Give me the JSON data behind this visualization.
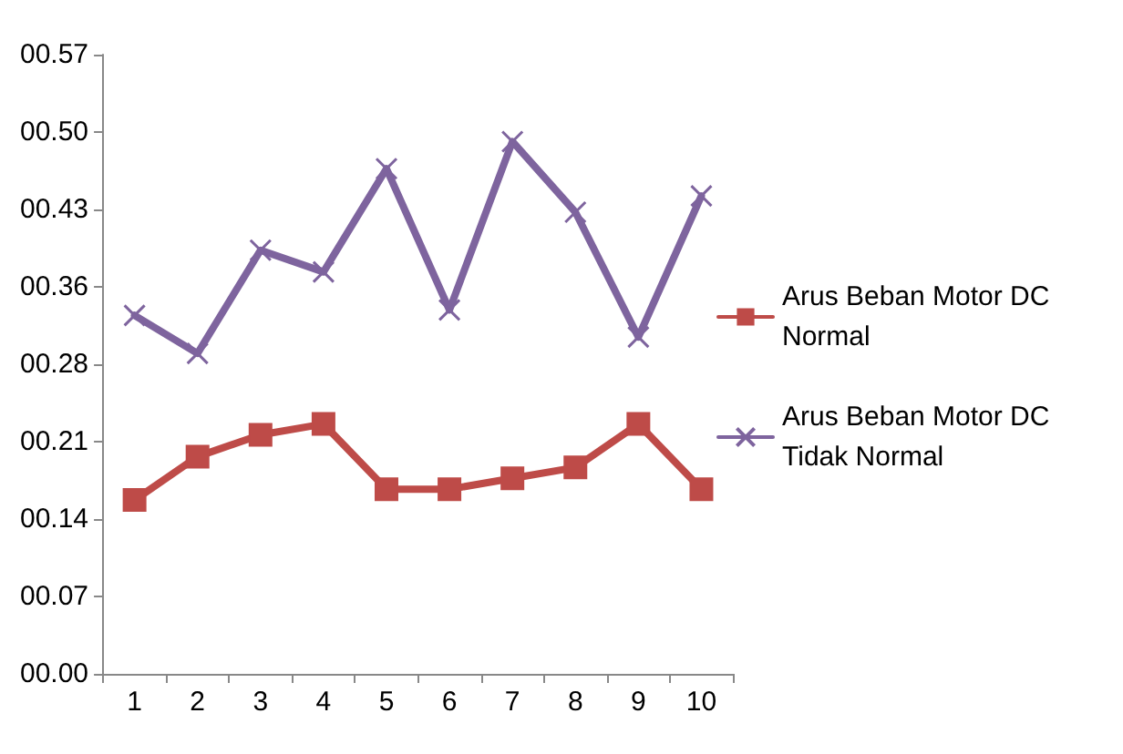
{
  "chart_data": {
    "type": "line",
    "categories": [
      "1",
      "2",
      "3",
      "4",
      "5",
      "6",
      "7",
      "8",
      "9",
      "10"
    ],
    "series": [
      {
        "name": "Arus Beban Motor DC Normal",
        "color": "#be4b48",
        "marker": "square",
        "values": [
          0.16,
          0.2,
          0.22,
          0.23,
          0.17,
          0.17,
          0.18,
          0.19,
          0.23,
          0.17
        ]
      },
      {
        "name": "Arus Beban Motor DC Tidak Normal",
        "color": "#7e649e",
        "marker": "cross",
        "values": [
          0.33,
          0.295,
          0.39,
          0.37,
          0.465,
          0.335,
          0.49,
          0.425,
          0.31,
          0.44
        ]
      }
    ],
    "ylim": [
      0,
      0.57
    ],
    "yticks": [
      {
        "value": 0,
        "label": "00.00"
      },
      {
        "value": 0.07125,
        "label": "00.07"
      },
      {
        "value": 0.1425,
        "label": "00.14"
      },
      {
        "value": 0.21375,
        "label": "00.21"
      },
      {
        "value": 0.285,
        "label": "00.28"
      },
      {
        "value": 0.35625,
        "label": "00.36"
      },
      {
        "value": 0.4275,
        "label": "00.43"
      },
      {
        "value": 0.49875,
        "label": "00.50"
      },
      {
        "value": 0.57,
        "label": "00.57"
      }
    ],
    "grid": false,
    "legend": "right",
    "line_style": "solid"
  }
}
